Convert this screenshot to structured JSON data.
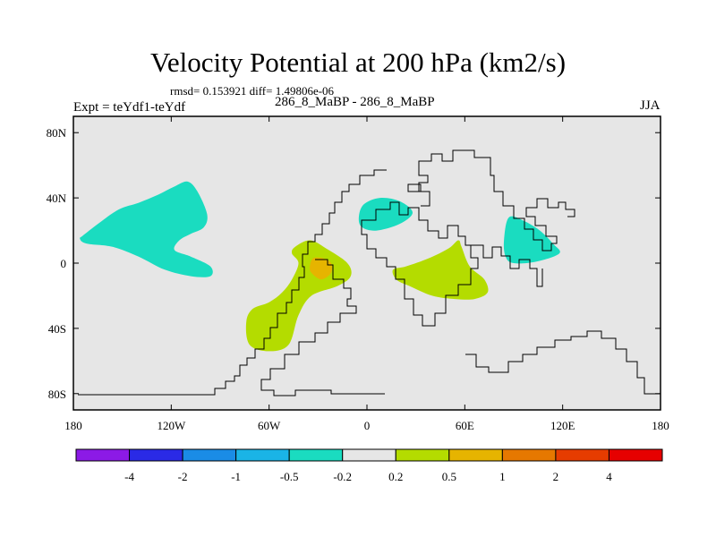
{
  "title": "Velocity Potential at 200 hPa (km2/s)",
  "stats": "rmsd= 0.153921 diff= 1.49806e-06",
  "expt": "Expt = teYdf1-teYdf",
  "comparison": "286_8_MaBP - 286_8_MaBP",
  "season": "JJA",
  "chart_data": {
    "type": "filled-contour-map",
    "variable": "Velocity Potential at 200 hPa",
    "units": "km2/s",
    "x_axis": {
      "range": [
        -180,
        180
      ],
      "ticks": [
        -180,
        -120,
        -60,
        0,
        60,
        120,
        180
      ],
      "tick_labels": [
        "180",
        "120W",
        "60W",
        "0",
        "60E",
        "120E",
        "180"
      ]
    },
    "y_axis": {
      "range": [
        -90,
        90
      ],
      "ticks": [
        80,
        40,
        0,
        -40,
        -80
      ],
      "tick_labels": [
        "80N",
        "40N",
        "0",
        "40S",
        "80S"
      ]
    },
    "colorbar": {
      "levels": [
        "-4",
        "-2",
        "-1",
        "-0.5",
        "-0.2",
        "0.2",
        "0.5",
        "1",
        "2",
        "4"
      ],
      "colors": [
        "#8c1ae6",
        "#2a2ae6",
        "#1a8ce6",
        "#1ab4e6",
        "#1adcc0",
        "#e6e6e6",
        "#b4dc00",
        "#e6b400",
        "#e67800",
        "#e63c00",
        "#e60000"
      ]
    },
    "regions": [
      {
        "name": "north-pacific-negative",
        "level": "-0.5 to -0.2",
        "color": "#1adcc0",
        "lons": [
          -174,
          -165,
          -152,
          -140,
          -128,
          -118,
          -110,
          -104,
          -98,
          -100,
          -108,
          -115,
          -118,
          -108,
          -96,
          -96,
          -108,
          -124,
          -140,
          -156,
          -172,
          -176
        ],
        "lats": [
          17,
          24,
          33,
          37,
          42,
          47,
          50,
          44,
          30,
          22,
          18,
          14,
          8,
          4,
          -2,
          -8,
          -8,
          -4,
          4,
          10,
          12,
          15
        ]
      },
      {
        "name": "north-atlantic-negative",
        "level": "-0.5 to -0.2",
        "color": "#1adcc0",
        "lons": [
          -2,
          8,
          20,
          28,
          20,
          6,
          -3,
          -5
        ],
        "lats": [
          36,
          40,
          38,
          31,
          24,
          20,
          22,
          28
        ]
      },
      {
        "name": "asia-negative",
        "level": "-0.5 to -0.2",
        "color": "#1adcc0",
        "lons": [
          87,
          96,
          106,
          114,
          118,
          104,
          90,
          85,
          84
        ],
        "lats": [
          28,
          26,
          20,
          12,
          6,
          1,
          0,
          4,
          14
        ]
      },
      {
        "name": "south-america-positive",
        "level": "0.2 to 0.5",
        "color": "#b4dc00",
        "lons": [
          -44,
          -35,
          -25,
          -12,
          -10,
          -18,
          -34,
          -42,
          -48,
          -60,
          -72,
          -74,
          -70,
          -60,
          -52,
          -46,
          -42,
          -46
        ],
        "lats": [
          10,
          14,
          9,
          0,
          -8,
          -14,
          -20,
          -32,
          -50,
          -54,
          -50,
          -36,
          -28,
          -24,
          -18,
          -10,
          0,
          6
        ]
      },
      {
        "name": "africa-indian-positive",
        "level": "0.2 to 0.5",
        "color": "#b4dc00",
        "lons": [
          24,
          38,
          50,
          56,
          58,
          63,
          72,
          74,
          66,
          54,
          40,
          26,
          18,
          16
        ],
        "lats": [
          -2,
          3,
          9,
          14,
          10,
          -2,
          -10,
          -18,
          -22,
          -22,
          -20,
          -14,
          -10,
          -4
        ]
      },
      {
        "name": "amazon-positive-core",
        "level": "0.5 to 1",
        "color": "#e6b400",
        "lons": [
          -33,
          -27,
          -22,
          -22,
          -28,
          -34,
          -35
        ],
        "lats": [
          3,
          3,
          0,
          -6,
          -10,
          -6,
          -2
        ]
      }
    ]
  }
}
